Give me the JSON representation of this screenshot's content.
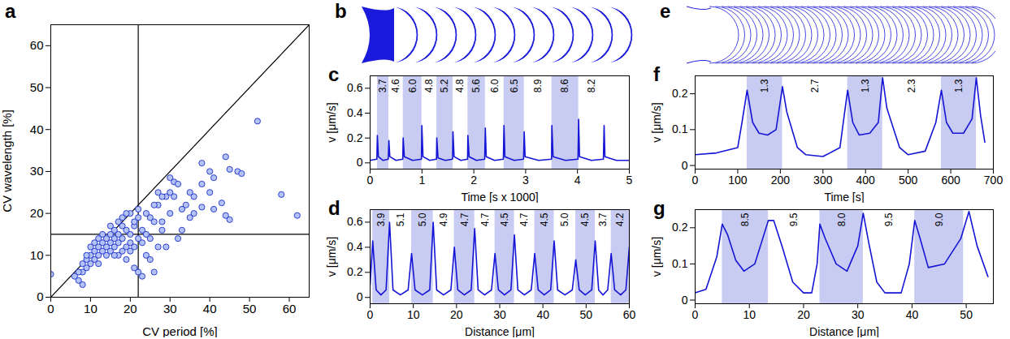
{
  "chart_data": [
    {
      "panel": "a",
      "type": "scatter",
      "x_label": "CV period [%]",
      "y_label": "CV wavelength [%]",
      "xlim": [
        0,
        65
      ],
      "ylim": [
        0,
        65
      ],
      "xticks": [
        0,
        10,
        20,
        30,
        40,
        50,
        60
      ],
      "yticks": [
        0,
        10,
        20,
        30,
        40,
        50,
        60
      ],
      "color": "#1a2fcc",
      "marker": "circle",
      "x": [
        0,
        52,
        58,
        62,
        47,
        48,
        44,
        45,
        40,
        41,
        38,
        40,
        41,
        43,
        44,
        45,
        35,
        35,
        34,
        33,
        36,
        38,
        38,
        30,
        29,
        31,
        31,
        32,
        30,
        28,
        27,
        26,
        25,
        24,
        25,
        24,
        25,
        23,
        26,
        22,
        21,
        27,
        28,
        26,
        27,
        22,
        22,
        21,
        20,
        20,
        19,
        19,
        18,
        18,
        18,
        17,
        17,
        17,
        16,
        16,
        16,
        15,
        15,
        15,
        14,
        14,
        14,
        13,
        13,
        13,
        12,
        12,
        12,
        11,
        11,
        11,
        10,
        10,
        10,
        9,
        9,
        8,
        8,
        7,
        7,
        6,
        8,
        9,
        12,
        20,
        21,
        23,
        23,
        24,
        21,
        20,
        19,
        22,
        17,
        18,
        16,
        15,
        19,
        28,
        33,
        29,
        36,
        30,
        32
      ],
      "values": [
        5.5,
        42,
        24.5,
        19.5,
        30,
        29.5,
        33.5,
        30.5,
        30,
        28.5,
        32,
        25,
        21,
        22.5,
        19.5,
        18.5,
        25,
        19,
        22,
        21,
        20,
        21.5,
        27,
        28.5,
        24,
        27.5,
        24,
        14,
        20,
        18,
        22,
        18,
        19,
        20,
        14,
        10,
        9,
        5,
        6,
        6,
        7,
        12,
        16,
        22,
        25,
        21,
        19,
        17,
        15,
        13,
        16,
        12,
        14,
        17,
        11,
        15,
        13,
        18,
        14,
        12,
        16,
        13,
        15,
        11,
        14,
        12,
        10,
        13,
        11,
        15,
        12,
        10,
        14,
        11,
        9,
        13,
        10,
        12,
        8,
        9,
        7,
        8,
        6,
        6,
        4,
        5,
        3,
        10,
        8,
        20,
        18,
        16,
        13,
        15,
        12,
        11,
        9,
        14,
        10,
        19,
        10,
        17,
        20,
        24,
        16,
        12,
        24,
        25,
        27
      ],
      "reference_lines": [
        {
          "x": [
            22,
            22
          ],
          "y": [
            0,
            65
          ],
          "color": "#000000"
        },
        {
          "x": [
            0,
            65
          ],
          "y": [
            15,
            15
          ],
          "color": "#000000"
        },
        {
          "x": [
            0,
            65
          ],
          "y": [
            0,
            65
          ],
          "color": "#000000"
        }
      ]
    },
    {
      "panel": "b",
      "type": "outline",
      "color": "#1a1adc"
    },
    {
      "panel": "c",
      "type": "line",
      "x_label": "Time [s x 1000]",
      "y_label": "v [μm/s]",
      "xlim": [
        0,
        5
      ],
      "ylim": [
        -0.05,
        0.7
      ],
      "xticks": [
        0,
        1,
        2,
        3,
        4,
        5
      ],
      "yticks": [
        0,
        0.2,
        0.4,
        0.6
      ],
      "color": "#1515d6",
      "x": [
        0,
        0.13,
        0.14,
        0.16,
        0.25,
        0.35,
        0.362,
        0.38,
        0.5,
        0.63,
        0.638,
        0.66,
        0.82,
        0.99,
        0.998,
        1.02,
        1.15,
        1.28,
        1.286,
        1.31,
        1.45,
        1.59,
        1.598,
        1.62,
        1.75,
        1.88,
        1.886,
        1.91,
        2.05,
        2.21,
        2.222,
        2.24,
        2.4,
        2.57,
        2.582,
        2.6,
        2.78,
        2.96,
        2.972,
        2.99,
        3.25,
        3.5,
        3.506,
        3.53,
        3.77,
        4.01,
        4.022,
        4.04,
        4.27,
        4.5,
        4.514,
        4.53,
        4.75,
        5
      ],
      "values": [
        0.02,
        0.03,
        0.22,
        0.05,
        0.02,
        0.03,
        0.18,
        0.05,
        0.02,
        0.03,
        0.2,
        0.05,
        0.02,
        0.03,
        0.3,
        0.05,
        0.02,
        0.03,
        0.2,
        0.04,
        0.02,
        0.03,
        0.25,
        0.05,
        0.02,
        0.03,
        0.22,
        0.05,
        0.02,
        0.03,
        0.28,
        0.05,
        0.02,
        0.03,
        0.3,
        0.05,
        0.02,
        0.03,
        0.25,
        0.05,
        0.02,
        0.03,
        0.3,
        0.05,
        0.02,
        0.03,
        0.35,
        0.05,
        0.02,
        0.03,
        0.3,
        0.05,
        0.02,
        0.02
      ],
      "bands": {
        "color": "#c8ccf2",
        "edges": [
          0.14,
          0.362,
          0.638,
          0.998,
          1.286,
          1.598,
          1.886,
          2.222,
          2.582,
          2.972,
          3.506,
          4.022,
          4.514
        ],
        "values": [
          3.7,
          4.6,
          6,
          4.8,
          5.2,
          4.8,
          5.6,
          6,
          6.5,
          8.9,
          8.6,
          8.2
        ],
        "value_labels": [
          "3.7",
          "4.6",
          "6.0",
          "4.8",
          "5.2",
          "4.8",
          "5.6",
          "6.0",
          "6.5",
          "8.9",
          "8.6",
          "8.2"
        ]
      }
    },
    {
      "panel": "d",
      "type": "line",
      "x_label": "Distance [μm]",
      "y_label": "v [μm/s]",
      "xlim": [
        0,
        60
      ],
      "ylim": [
        -0.05,
        0.7
      ],
      "xticks": [
        0,
        10,
        20,
        30,
        40,
        50,
        60
      ],
      "yticks": [
        0,
        0.2,
        0.4,
        0.6
      ],
      "color": "#1515d6",
      "x": [
        0,
        0.6,
        1.4,
        2.5,
        3.7,
        4.5,
        5.3,
        7.0,
        8.8,
        9.6,
        10.4,
        12.1,
        13.8,
        14.6,
        15.4,
        17.0,
        18.7,
        19.5,
        20.3,
        21.8,
        23.4,
        24.2,
        25.0,
        26.5,
        28.1,
        28.9,
        29.7,
        31.1,
        32.6,
        33.4,
        34.2,
        35.7,
        37.3,
        38.1,
        38.9,
        40.3,
        41.8,
        42.6,
        43.4,
        45.1,
        46.8,
        47.6,
        48.4,
        49.8,
        51.3,
        52.1,
        52.9,
        53.9,
        55.0,
        55.8,
        56.6,
        58.0,
        59.2,
        60.0
      ],
      "values": [
        0.1,
        0.45,
        0.06,
        0.02,
        0.06,
        0.6,
        0.06,
        0.02,
        0.06,
        0.35,
        0.06,
        0.02,
        0.06,
        0.6,
        0.06,
        0.02,
        0.06,
        0.4,
        0.06,
        0.02,
        0.06,
        0.55,
        0.06,
        0.02,
        0.06,
        0.35,
        0.06,
        0.02,
        0.06,
        0.5,
        0.06,
        0.02,
        0.06,
        0.35,
        0.06,
        0.02,
        0.06,
        0.45,
        0.06,
        0.02,
        0.06,
        0.3,
        0.06,
        0.02,
        0.06,
        0.45,
        0.06,
        0.02,
        0.06,
        0.35,
        0.06,
        0.02,
        0.06,
        0.4
      ],
      "bands": {
        "color": "#c8ccf2",
        "edges": [
          0.6,
          4.5,
          9.6,
          14.6,
          19.5,
          24.2,
          28.9,
          33.4,
          38.1,
          42.6,
          47.6,
          52.1,
          55.8,
          60.0
        ],
        "values": [
          3.9,
          5.1,
          5,
          4.9,
          4.7,
          4.7,
          4.5,
          4.7,
          4.5,
          5,
          4.5,
          3.7,
          4.2
        ],
        "value_labels": [
          "3.9",
          "5.1",
          "5.0",
          "4.9",
          "4.7",
          "4.7",
          "4.5",
          "4.7",
          "4.5",
          "5.0",
          "4.5",
          "3.7",
          "4.2"
        ]
      }
    },
    {
      "panel": "e",
      "type": "outline",
      "color": "#1a1adc"
    },
    {
      "panel": "f",
      "type": "line",
      "x_label": "Time [s]",
      "y_label": "v [μm/s]",
      "xlim": [
        0,
        700
      ],
      "ylim": [
        -0.01,
        0.25
      ],
      "xticks": [
        0,
        100,
        200,
        300,
        400,
        500,
        600,
        700
      ],
      "yticks": [
        0,
        0.1,
        0.2
      ],
      "color": "#1515d6",
      "x": [
        0,
        50,
        100,
        110,
        122,
        135,
        150,
        170,
        190,
        205,
        215,
        240,
        260,
        300,
        340,
        350,
        358,
        370,
        385,
        410,
        430,
        440,
        450,
        480,
        500,
        540,
        565,
        578,
        590,
        605,
        630,
        650,
        660,
        670,
        680
      ],
      "values": [
        0.03,
        0.035,
        0.05,
        0.12,
        0.21,
        0.12,
        0.09,
        0.085,
        0.1,
        0.22,
        0.15,
        0.05,
        0.03,
        0.025,
        0.05,
        0.14,
        0.21,
        0.12,
        0.085,
        0.09,
        0.12,
        0.245,
        0.16,
        0.05,
        0.03,
        0.04,
        0.12,
        0.21,
        0.12,
        0.09,
        0.09,
        0.13,
        0.245,
        0.14,
        0.065
      ],
      "bands": {
        "color": "#c8ccf2",
        "edges": [
          122,
          205,
          358,
          440,
          578,
          660
        ],
        "values": [
          1.3,
          2.7,
          1.3,
          2.3,
          1.3
        ],
        "value_labels": [
          "1.3",
          "2.7",
          "1.3",
          "2.3",
          "1.3"
        ]
      }
    },
    {
      "panel": "g",
      "type": "line",
      "x_label": "Distance [μm]",
      "y_label": "v [μm/s]",
      "xlim": [
        0,
        55
      ],
      "ylim": [
        -0.01,
        0.25
      ],
      "xticks": [
        0,
        10,
        20,
        30,
        40,
        50
      ],
      "yticks": [
        0,
        0.1,
        0.2
      ],
      "color": "#1515d6",
      "x": [
        0,
        2,
        4,
        5,
        6,
        7.5,
        9,
        11,
        13.5,
        14.5,
        16,
        18,
        20,
        21.5,
        22.5,
        23,
        24,
        26,
        28,
        30,
        31,
        32,
        33.5,
        35,
        38,
        39.5,
        40.5,
        41.5,
        43,
        46,
        49,
        50.5,
        52,
        54
      ],
      "values": [
        0.02,
        0.03,
        0.12,
        0.21,
        0.18,
        0.11,
        0.08,
        0.1,
        0.22,
        0.22,
        0.15,
        0.05,
        0.02,
        0.02,
        0.1,
        0.21,
        0.17,
        0.1,
        0.08,
        0.15,
        0.24,
        0.16,
        0.05,
        0.02,
        0.02,
        0.1,
        0.22,
        0.17,
        0.09,
        0.1,
        0.17,
        0.245,
        0.15,
        0.065
      ],
      "bands": {
        "color": "#c8ccf2",
        "edges": [
          5,
          13.5,
          23,
          31,
          40.5,
          49.5
        ],
        "values": [
          8.5,
          9.5,
          8,
          9.5,
          9
        ],
        "value_labels": [
          "8.5",
          "9.5",
          "8.0",
          "9.5",
          "9.0"
        ]
      }
    }
  ]
}
